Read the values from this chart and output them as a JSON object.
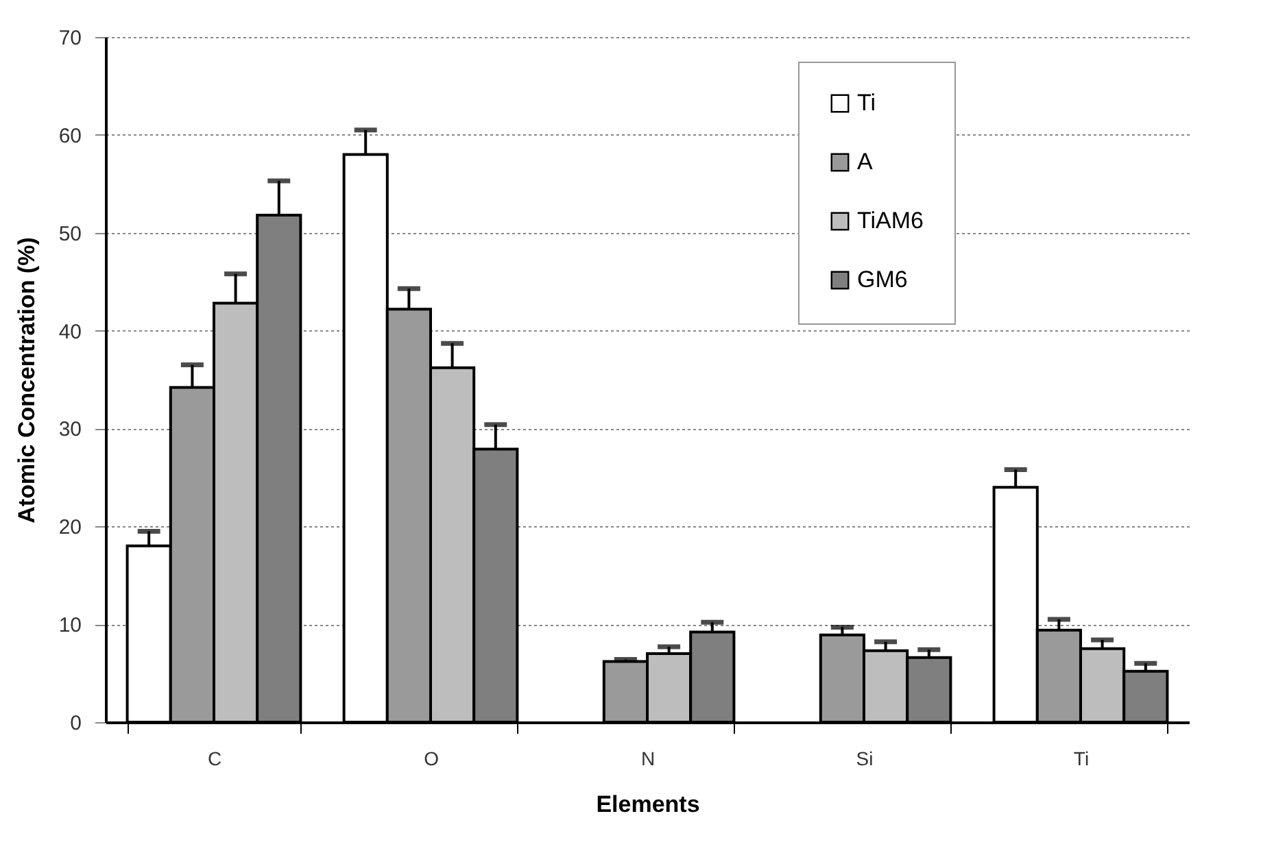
{
  "chart_data": {
    "type": "bar",
    "xlabel": "Elements",
    "ylabel": "Atomic  Concentration  (%)",
    "categories": [
      "C",
      "O",
      "N",
      "Si",
      "Ti"
    ],
    "series": [
      {
        "name": "Ti",
        "color": "#ffffff",
        "values": [
          18,
          58,
          null,
          null,
          24
        ],
        "errors": [
          1.5,
          2.5,
          null,
          null,
          1.8
        ]
      },
      {
        "name": "A",
        "color": "#9a9a9a",
        "values": [
          34.2,
          42.2,
          6.2,
          8.9,
          9.4
        ],
        "errors": [
          2.3,
          2.1,
          0.2,
          0.8,
          1.1
        ]
      },
      {
        "name": "TiAM6",
        "color": "#bdbdbd",
        "values": [
          42.8,
          36.2,
          7.0,
          7.3,
          7.5
        ],
        "errors": [
          3,
          2.5,
          0.7,
          0.9,
          0.9
        ]
      },
      {
        "name": "GM6",
        "color": "#7f7f7f",
        "values": [
          51.8,
          27.9,
          9.2,
          6.6,
          5.2
        ],
        "errors": [
          3.5,
          2.5,
          1,
          0.8,
          0.8
        ]
      }
    ],
    "ylim": [
      0,
      70
    ],
    "yticks": [
      0,
      10,
      20,
      30,
      40,
      50,
      60,
      70
    ],
    "grid": "y",
    "legend": "top right"
  }
}
